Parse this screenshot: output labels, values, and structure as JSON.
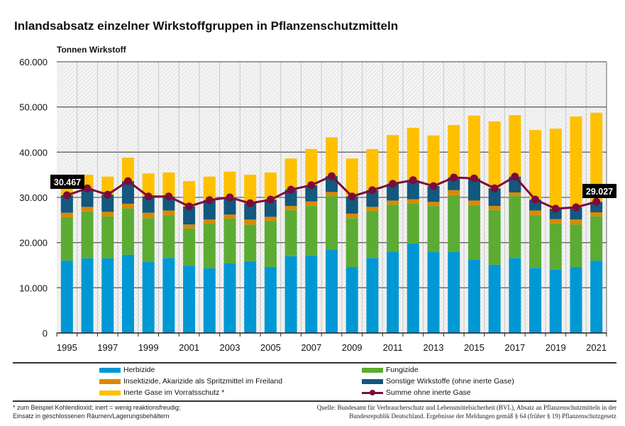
{
  "chart_data": {
    "type": "bar",
    "stacked": true,
    "title": "Inlandsabsatz einzelner Wirkstoffgruppen in Pflanzenschutzmitteln",
    "ylabel": "Tonnen Wirkstoff",
    "xlabel": "",
    "ylim": [
      0,
      60000
    ],
    "yticks": [
      "0",
      "10.000",
      "20.000",
      "30.000",
      "40.000",
      "50.000",
      "60.000"
    ],
    "xtick_labels": [
      "1995",
      "1997",
      "1999",
      "2001",
      "2003",
      "2005",
      "2007",
      "2009",
      "2011",
      "2013",
      "2015",
      "2017",
      "2019",
      "2021"
    ],
    "grid": true,
    "legend_placement": "bottom",
    "categories": [
      "1995",
      "1996",
      "1997",
      "1998",
      "1999",
      "2000",
      "2001",
      "2002",
      "2003",
      "2004",
      "2005",
      "2006",
      "2007",
      "2008",
      "2009",
      "2010",
      "2011",
      "2012",
      "2013",
      "2014",
      "2015",
      "2016",
      "2017",
      "2018",
      "2019",
      "2020",
      "2021"
    ],
    "series": [
      {
        "name": "Herbizide",
        "color": "#0098d4",
        "values": [
          16000,
          16500,
          16500,
          17300,
          15700,
          16600,
          14900,
          14300,
          15400,
          15900,
          14600,
          17000,
          17100,
          18500,
          14600,
          16600,
          17900,
          19800,
          17900,
          17900,
          16300,
          15100,
          16600,
          14400,
          14000,
          14600,
          16000
        ]
      },
      {
        "name": "Fungizide",
        "color": "#5cac33",
        "values": [
          9600,
          10400,
          9300,
          10300,
          9700,
          9500,
          8200,
          10000,
          9900,
          8100,
          10200,
          10200,
          11000,
          11800,
          10800,
          10400,
          10500,
          8800,
          10200,
          12600,
          12000,
          12100,
          13700,
          11700,
          10200,
          9400,
          9800
        ]
      },
      {
        "name": "Insektizide, Akarizide als Spritzmittel im Freiland",
        "color": "#d98a00",
        "values": [
          1000,
          1000,
          1000,
          1000,
          1200,
          1000,
          900,
          800,
          900,
          1100,
          900,
          900,
          1000,
          900,
          1000,
          900,
          900,
          1000,
          900,
          1100,
          1000,
          900,
          800,
          1000,
          1000,
          1100,
          900
        ]
      },
      {
        "name": "Sonstige  Wirkstoffe (ohne inerte Gase)",
        "color": "#12587f",
        "values": [
          3867,
          4100,
          3800,
          5000,
          3600,
          3100,
          4000,
          4300,
          3800,
          3600,
          3800,
          3600,
          3600,
          3500,
          3800,
          3700,
          3700,
          4200,
          3500,
          2800,
          4900,
          3900,
          3500,
          2400,
          2300,
          2700,
          2327
        ]
      },
      {
        "name": "Inerte Gase im Vorratsschutz *",
        "color": "#ffc000",
        "values": [
          4500,
          3000,
          4000,
          5200,
          5100,
          5300,
          5600,
          5200,
          5700,
          6300,
          6000,
          6900,
          8000,
          8600,
          8400,
          9100,
          10800,
          11600,
          11200,
          11600,
          13900,
          14800,
          13600,
          15400,
          17700,
          20100,
          19700
        ]
      }
    ],
    "line": {
      "name": "Summe ohne inerte Gase",
      "color": "#7d0a3c",
      "values": [
        30467,
        32000,
        30600,
        33600,
        30200,
        30200,
        28000,
        29400,
        30000,
        28700,
        29500,
        31700,
        32700,
        34700,
        30200,
        31600,
        33000,
        33800,
        32500,
        34400,
        34200,
        32000,
        34600,
        29500,
        27500,
        27800,
        29027
      ]
    },
    "annotations": [
      "30.467",
      "29.027"
    ]
  },
  "footnote": [
    "* zum Beispiel Kohlendioxid; inert = wenig reaktionsfreudig;",
    "Einsatz in geschlossenen Räumen/Lagerungsbehältern"
  ],
  "source": [
    "Quelle: Bundesamt für Verbraucherschutz und Lebensmittelsicherheit (BVL), Absatz an Pflanzenschutzmitteln in der",
    "Bundesrepublik Deutschland. Ergebnisse der Meldungen gemäß § 64 (früher § 19) Pflanzenschutzgesetz"
  ]
}
